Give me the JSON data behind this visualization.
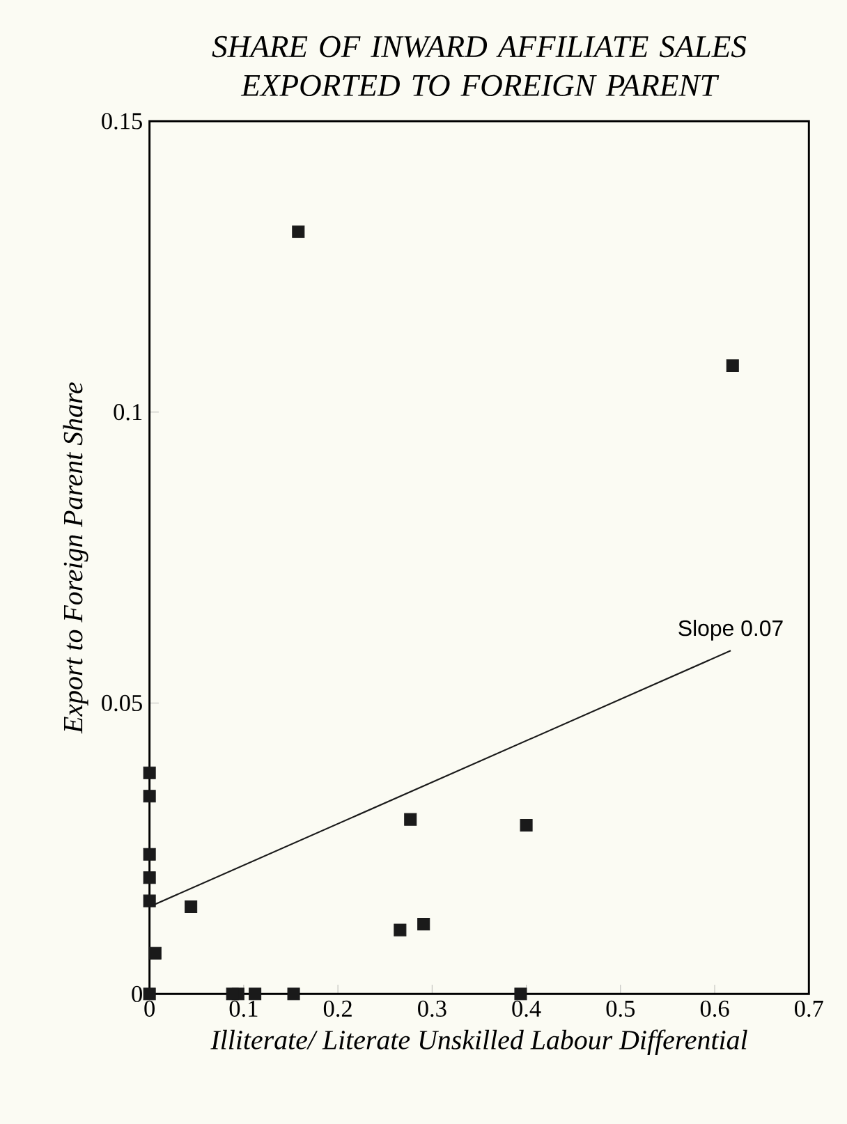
{
  "chart_data": {
    "type": "scatter",
    "title": "SHARE OF INWARD AFFILIATE SALES EXPORTED TO FOREIGN PARENT",
    "xlabel": "Illiterate/ Literate Unskilled Labour Differential",
    "ylabel": "Export to Foreign Parent Share",
    "xlim": [
      0,
      0.7
    ],
    "xticks": [
      0,
      0.1,
      0.2,
      0.3,
      0.4,
      0.5,
      0.6,
      0.7
    ],
    "ylim": [
      0,
      0.15
    ],
    "yticks": [
      0,
      0.05,
      0.1,
      0.15
    ],
    "series": [
      {
        "color": "#1a1a1a",
        "marker": "square",
        "x": [
          0.619,
          0.4,
          0.394,
          0.277,
          0.291,
          0.266,
          0.158,
          0.044,
          0.153,
          0.112,
          0.094,
          0.088,
          0.006,
          0,
          0,
          0,
          0,
          0,
          0
        ],
        "values": [
          0.108,
          0.029,
          0,
          0.03,
          0.012,
          0.011,
          0.131,
          0.015,
          0,
          0,
          0,
          0,
          0.007,
          0,
          0.038,
          0.034,
          0.024,
          0.02,
          0.016
        ]
      },
      {
        "type": "line",
        "color": "#1a1a1a",
        "marker": "none",
        "x": [
          0,
          0.617
        ],
        "values": [
          0.015,
          0.059
        ]
      }
    ],
    "annotations": [
      "Slope 0.07"
    ]
  }
}
